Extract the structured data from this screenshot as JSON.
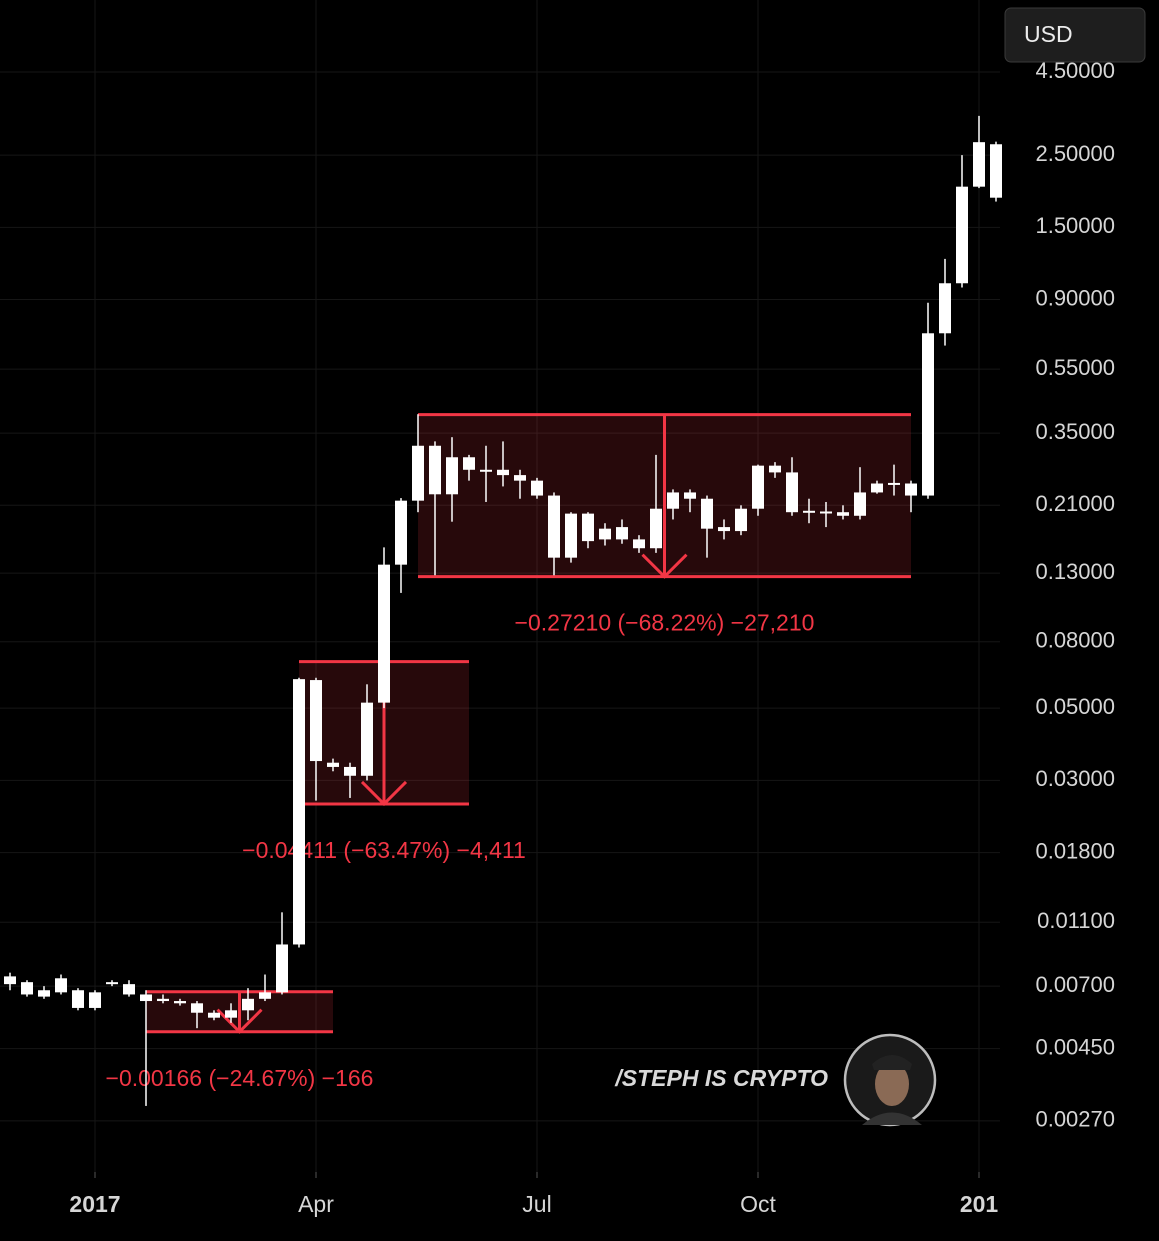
{
  "currency": "USD",
  "watermark": "/STEPH IS CRYPTO",
  "chart_data": {
    "type": "candlestick",
    "categories": [
      null,
      null,
      null,
      null,
      null,
      "2017",
      null,
      null,
      null,
      null,
      null,
      null,
      null,
      null,
      null,
      null,
      null,
      null,
      "Apr",
      null,
      null,
      null,
      null,
      null,
      null,
      null,
      null,
      null,
      null,
      null,
      null,
      "Jul",
      null,
      null,
      null,
      null,
      null,
      null,
      null,
      null,
      null,
      null,
      null,
      null,
      "Oct",
      null,
      null,
      null,
      null,
      null,
      null,
      null,
      null,
      null,
      null,
      null,
      null,
      "201",
      null
    ],
    "open": [
      0.0075,
      0.0072,
      0.0068,
      0.0067,
      0.0068,
      0.0067,
      0.0071,
      0.0071,
      0.0066,
      0.0064,
      0.0063,
      0.0062,
      0.0058,
      0.0056,
      0.0059,
      0.0064,
      0.0067,
      0.0094,
      0.061,
      0.034,
      0.033,
      0.031,
      0.052,
      0.138,
      0.217,
      0.32,
      0.227,
      0.295,
      0.27,
      0.27,
      0.26,
      0.25,
      0.225,
      0.145,
      0.198,
      0.165,
      0.18,
      0.165,
      0.155,
      0.205,
      0.23,
      0.22,
      0.18,
      0.175,
      0.205,
      0.278,
      0.265,
      0.2,
      0.2,
      0.2,
      0.195,
      0.23,
      0.245,
      0.245,
      0.225,
      0.709,
      1.01,
      2.0,
      2.7
    ],
    "high": [
      0.0077,
      0.0073,
      0.007,
      0.0076,
      0.0069,
      0.0068,
      0.0073,
      0.0073,
      0.0068,
      0.0066,
      0.0064,
      0.0063,
      0.0059,
      0.0062,
      0.0069,
      0.0076,
      0.0118,
      0.062,
      0.062,
      0.035,
      0.034,
      0.0592,
      0.156,
      0.221,
      0.4,
      0.33,
      0.34,
      0.3,
      0.32,
      0.33,
      0.27,
      0.255,
      0.23,
      0.2,
      0.2,
      0.185,
      0.19,
      0.17,
      0.3,
      0.235,
      0.235,
      0.225,
      0.19,
      0.21,
      0.28,
      0.285,
      0.295,
      0.22,
      0.215,
      0.21,
      0.275,
      0.25,
      0.28,
      0.25,
      0.88,
      1.2,
      2.5,
      3.3,
      2.75
    ],
    "low": [
      0.0068,
      0.0065,
      0.0064,
      0.0066,
      0.0059,
      0.0059,
      0.007,
      0.0065,
      0.003,
      0.0062,
      0.0061,
      0.0052,
      0.0055,
      0.0054,
      0.0055,
      0.0063,
      0.0066,
      0.0092,
      0.026,
      0.032,
      0.0265,
      0.03,
      0.05,
      0.113,
      0.2,
      0.128,
      0.187,
      0.25,
      0.215,
      0.24,
      0.22,
      0.22,
      0.128,
      0.14,
      0.155,
      0.158,
      0.16,
      0.15,
      0.15,
      0.19,
      0.2,
      0.145,
      0.165,
      0.17,
      0.195,
      0.255,
      0.195,
      0.185,
      0.18,
      0.19,
      0.19,
      0.228,
      0.225,
      0.2,
      0.22,
      0.65,
      0.98,
      1.98,
      1.8
    ],
    "close": [
      0.0071,
      0.0066,
      0.0065,
      0.0074,
      0.006,
      0.006,
      0.0072,
      0.0066,
      0.0063,
      0.0063,
      0.0062,
      0.0058,
      0.0056,
      0.0059,
      0.0064,
      0.0067,
      0.0094,
      0.0614,
      0.0344,
      0.033,
      0.031,
      0.052,
      0.138,
      0.217,
      0.32,
      0.227,
      0.295,
      0.27,
      0.268,
      0.26,
      0.25,
      0.225,
      0.145,
      0.198,
      0.163,
      0.178,
      0.165,
      0.155,
      0.205,
      0.23,
      0.22,
      0.178,
      0.175,
      0.205,
      0.278,
      0.265,
      0.2,
      0.202,
      0.201,
      0.195,
      0.23,
      0.245,
      0.246,
      0.225,
      0.709,
      1.01,
      2.0,
      2.74,
      1.85
    ],
    "color": "#ffffff",
    "ylim": [
      0.00188,
      7.49
    ],
    "log_scale": true,
    "grid": true,
    "yticks": [
      {
        "value": 4.5,
        "label": "4.50000"
      },
      {
        "value": 2.5,
        "label": "2.50000"
      },
      {
        "value": 1.5,
        "label": "1.50000"
      },
      {
        "value": 0.9,
        "label": "0.90000"
      },
      {
        "value": 0.55,
        "label": "0.55000"
      },
      {
        "value": 0.35,
        "label": "0.35000"
      },
      {
        "value": 0.21,
        "label": "0.21000"
      },
      {
        "value": 0.13,
        "label": "0.13000"
      },
      {
        "value": 0.08,
        "label": "0.08000"
      },
      {
        "value": 0.05,
        "label": "0.05000"
      },
      {
        "value": 0.03,
        "label": "0.03000"
      },
      {
        "value": 0.018,
        "label": "0.01800"
      },
      {
        "value": 0.011,
        "label": "0.01100"
      },
      {
        "value": 0.007,
        "label": "0.00700"
      },
      {
        "value": 0.0045,
        "label": "0.00450"
      },
      {
        "value": 0.0027,
        "label": "0.00270"
      }
    ],
    "measures": [
      {
        "from": 0.00673,
        "to": 0.00507,
        "label": "−0.00166 (−24.67%) −166",
        "color": "#f23645"
      },
      {
        "from": 0.0695,
        "to": 0.02539,
        "label": "−0.04411 (−63.47%) −4,411",
        "color": "#f23645"
      },
      {
        "from": 0.39886,
        "to": 0.12676,
        "label": "−0.27210 (−68.22%) −27,210",
        "color": "#f23645"
      }
    ]
  }
}
